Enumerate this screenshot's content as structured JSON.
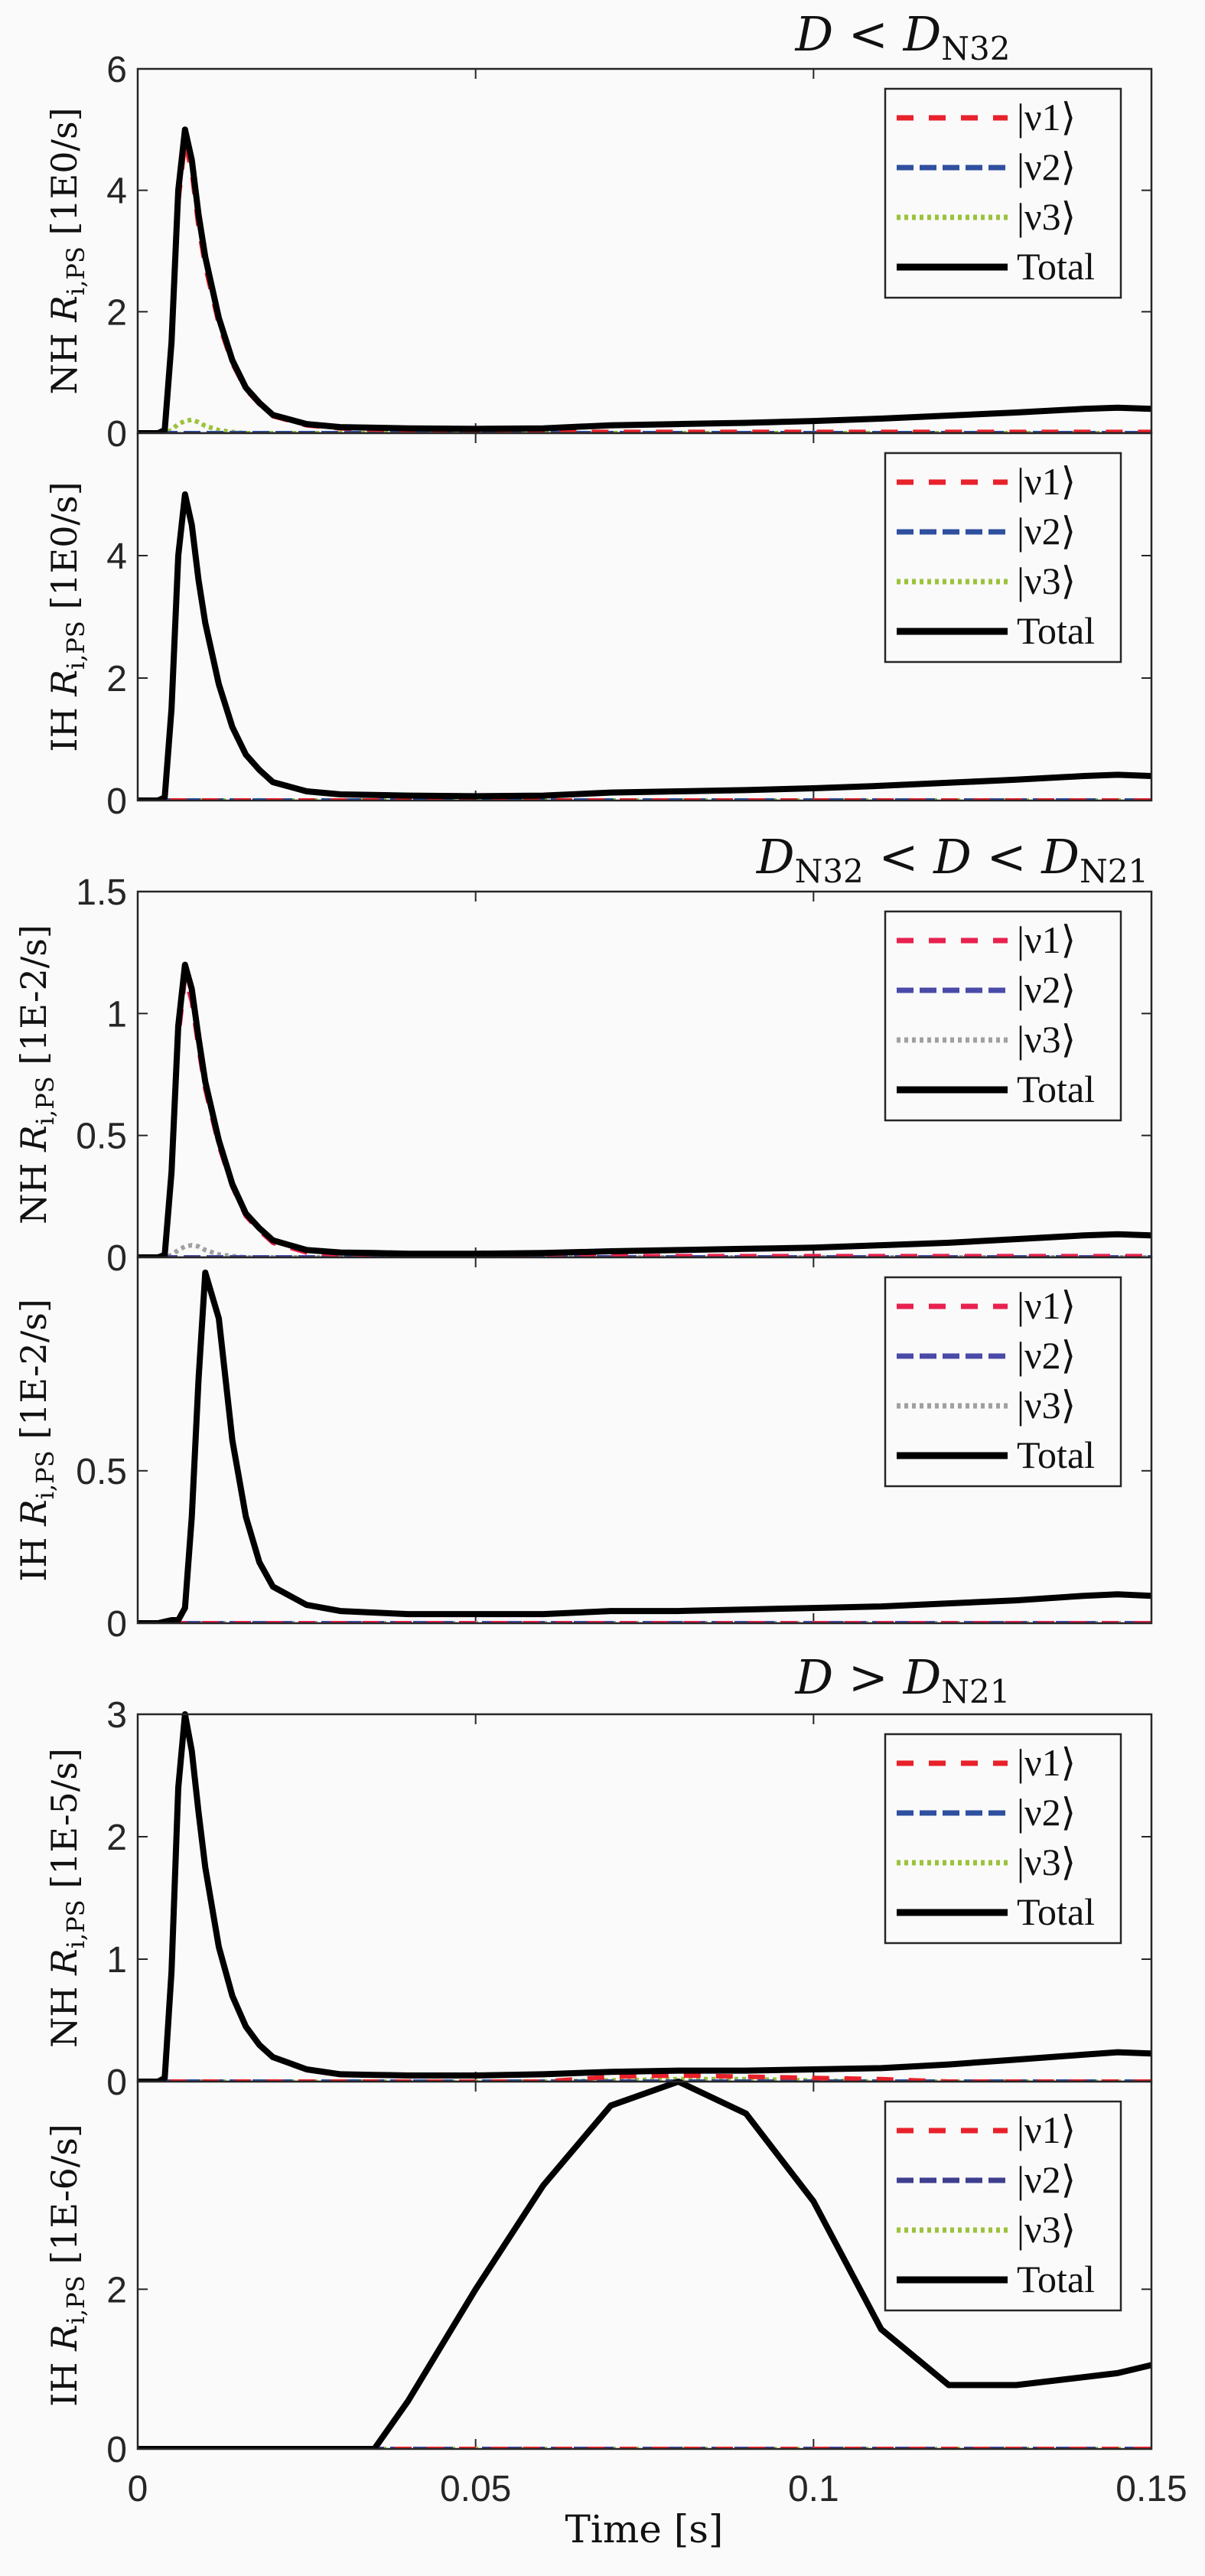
{
  "chart_data": {
    "type": "line",
    "xlabel": "Time [s]",
    "xlim": [
      0,
      0.15
    ],
    "xticks": [
      "0",
      "0.05",
      "0.1",
      "0.15"
    ],
    "xtick_values": [
      0,
      0.05,
      0.1,
      0.15
    ],
    "legend_labels": [
      "|ν1⟩",
      "|ν2⟩",
      "|ν3⟩",
      "Total"
    ],
    "legend_placement": "top-right",
    "x": [
      0,
      0.003,
      0.004,
      0.005,
      0.006,
      0.007,
      0.008,
      0.009,
      0.01,
      0.012,
      0.014,
      0.016,
      0.018,
      0.02,
      0.025,
      0.03,
      0.035,
      0.04,
      0.05,
      0.06,
      0.07,
      0.08,
      0.09,
      0.1,
      0.11,
      0.12,
      0.13,
      0.14,
      0.145,
      0.15
    ],
    "groups": [
      {
        "title": {
          "a": "D",
          "op1": " < ",
          "b": "D",
          "b_sub": "N32"
        }
      },
      {
        "title": {
          "pre": "D",
          "pre_sub": "N32",
          "op1": " < ",
          "a": "D",
          "op2": " < ",
          "b": "D",
          "b_sub": "N21"
        }
      },
      {
        "title": {
          "a": "D",
          "op1": " > ",
          "b": "D",
          "b_sub": "N21"
        }
      }
    ],
    "panels": [
      {
        "group": 0,
        "hierarchy": "NH",
        "symbol": "R",
        "sub": "i,PS",
        "unit": "[1E0/s]",
        "ylim": [
          0,
          6
        ],
        "yticks": [
          0,
          2,
          4,
          6
        ],
        "colors": {
          "nu1": "#e8212b",
          "nu2": "#2f4f9f",
          "nu3": "#9cc23c"
        },
        "series": {
          "total": [
            0,
            0,
            0.05,
            1.5,
            4.0,
            5.0,
            4.5,
            3.6,
            2.9,
            1.9,
            1.2,
            0.75,
            0.5,
            0.3,
            0.15,
            0.1,
            0.09,
            0.08,
            0.07,
            0.08,
            0.13,
            0.15,
            0.17,
            0.2,
            0.24,
            0.29,
            0.34,
            0.4,
            0.42,
            0.4
          ],
          "nu1": [
            0,
            0,
            0.04,
            1.4,
            3.8,
            4.8,
            4.3,
            3.4,
            2.75,
            1.8,
            1.15,
            0.72,
            0.48,
            0.28,
            0.13,
            0.08,
            0.06,
            0.05,
            0.03,
            0.02,
            0.02,
            0.02,
            0.02,
            0.02,
            0.02,
            0.02,
            0.02,
            0.02,
            0.02,
            0.02
          ],
          "nu2": 0,
          "nu3": [
            0,
            0,
            0,
            0.05,
            0.15,
            0.2,
            0.22,
            0.18,
            0.12,
            0.05,
            0.02,
            0,
            0,
            0,
            0,
            0,
            0,
            0,
            0,
            0,
            0,
            0,
            0,
            0,
            0,
            0,
            0,
            0,
            0,
            0
          ]
        }
      },
      {
        "group": 0,
        "hierarchy": "IH",
        "symbol": "R",
        "sub": "i,PS",
        "unit": "[1E0/s]",
        "ylim": [
          0,
          6
        ],
        "yticks": [
          0,
          2,
          4
        ],
        "colors": {
          "nu1": "#e8212b",
          "nu2": "#2f4f9f",
          "nu3": "#9cc23c"
        },
        "series": {
          "total": [
            0,
            0,
            0.05,
            1.5,
            4.0,
            5.0,
            4.5,
            3.6,
            2.9,
            1.9,
            1.2,
            0.75,
            0.5,
            0.3,
            0.15,
            0.1,
            0.09,
            0.08,
            0.07,
            0.08,
            0.13,
            0.15,
            0.17,
            0.2,
            0.24,
            0.29,
            0.34,
            0.4,
            0.42,
            0.4
          ],
          "nu1": 0,
          "nu2": 0,
          "nu3": 0
        }
      },
      {
        "group": 1,
        "hierarchy": "NH",
        "symbol": "R",
        "sub": "i,PS",
        "unit": "[1E-2/s]",
        "ylim": [
          0,
          1.5
        ],
        "yticks": [
          0,
          0.5,
          1,
          1.5
        ],
        "colors": {
          "nu1": "#e8214f",
          "nu2": "#4a4aa8",
          "nu3": "#a0a0a0"
        },
        "series": {
          "total": [
            0,
            0,
            0.01,
            0.35,
            0.95,
            1.2,
            1.1,
            0.9,
            0.72,
            0.48,
            0.3,
            0.18,
            0.12,
            0.07,
            0.03,
            0.02,
            0.018,
            0.015,
            0.015,
            0.018,
            0.025,
            0.03,
            0.035,
            0.04,
            0.05,
            0.06,
            0.075,
            0.09,
            0.095,
            0.09
          ],
          "nu1": [
            0,
            0,
            0.01,
            0.33,
            0.9,
            1.15,
            1.05,
            0.86,
            0.69,
            0.46,
            0.29,
            0.17,
            0.11,
            0.06,
            0.02,
            0.01,
            0.01,
            0.005,
            0.005,
            0.005,
            0.005,
            0.005,
            0.005,
            0.005,
            0.005,
            0.005,
            0.005,
            0.005,
            0.005,
            0.005
          ],
          "nu2": 0,
          "nu3": [
            0,
            0,
            0,
            0.01,
            0.03,
            0.045,
            0.05,
            0.045,
            0.03,
            0.012,
            0.005,
            0,
            0,
            0,
            0,
            0,
            0,
            0,
            0,
            0,
            0,
            0,
            0,
            0,
            0,
            0,
            0,
            0,
            0,
            0
          ]
        }
      },
      {
        "group": 1,
        "hierarchy": "IH",
        "symbol": "R",
        "sub": "i,PS",
        "unit": "[1E-2/s]",
        "ylim": [
          0,
          1.2
        ],
        "yticks": [
          0,
          0.5
        ],
        "colors": {
          "nu1": "#e8214f",
          "nu2": "#4a4aa8",
          "nu3": "#a0a0a0"
        },
        "series": {
          "total": [
            0,
            0,
            0.005,
            0.01,
            0.01,
            0.05,
            0.35,
            0.8,
            1.15,
            1.0,
            0.6,
            0.35,
            0.2,
            0.12,
            0.06,
            0.04,
            0.035,
            0.03,
            0.03,
            0.03,
            0.04,
            0.04,
            0.045,
            0.05,
            0.055,
            0.065,
            0.075,
            0.09,
            0.095,
            0.09
          ],
          "nu1": 0,
          "nu2": 0,
          "nu3": 0
        }
      },
      {
        "group": 2,
        "hierarchy": "NH",
        "symbol": "R",
        "sub": "i,PS",
        "unit": "[1E-5/s]",
        "ylim": [
          0,
          3
        ],
        "yticks": [
          0,
          1,
          2,
          3
        ],
        "colors": {
          "nu1": "#e8212b",
          "nu2": "#2f4f9f",
          "nu3": "#9cc23c"
        },
        "series": {
          "total": [
            0,
            0,
            0.03,
            0.9,
            2.4,
            3.0,
            2.7,
            2.2,
            1.75,
            1.1,
            0.7,
            0.45,
            0.3,
            0.2,
            0.1,
            0.06,
            0.055,
            0.05,
            0.05,
            0.06,
            0.08,
            0.09,
            0.09,
            0.1,
            0.11,
            0.14,
            0.18,
            0.22,
            0.24,
            0.23
          ],
          "nu1": [
            0,
            0,
            0,
            0,
            0,
            0,
            0,
            0,
            0,
            0,
            0,
            0,
            0,
            0,
            0,
            0,
            0,
            0,
            0,
            0,
            0.04,
            0.05,
            0.04,
            0.03,
            0.02,
            0,
            0,
            0,
            0,
            0
          ],
          "nu2": 0,
          "nu3": [
            0,
            0,
            0,
            0,
            0,
            0,
            0,
            0,
            0,
            0,
            0,
            0,
            0,
            0,
            0,
            0,
            0,
            0,
            0,
            0,
            0.01,
            0.02,
            0.02,
            0.01,
            0,
            0,
            0,
            0,
            0,
            0
          ]
        }
      },
      {
        "group": 2,
        "hierarchy": "IH",
        "symbol": "R",
        "sub": "i,PS",
        "unit": "[1E-6/s]",
        "ylim": [
          0,
          4.6
        ],
        "yticks": [
          0,
          2
        ],
        "colors": {
          "nu1": "#e8212b",
          "nu2": "#3f3f8f",
          "nu3": "#9cc23c"
        },
        "series": {
          "total": [
            0,
            0,
            0,
            0,
            0,
            0,
            0,
            0,
            0,
            0,
            0,
            0,
            0,
            0,
            0,
            0,
            0,
            0.6,
            2.0,
            3.3,
            4.3,
            4.6,
            4.2,
            3.1,
            1.5,
            0.8,
            0.8,
            0.9,
            0.95,
            1.05
          ],
          "nu1": 0,
          "nu2": 0,
          "nu3": 0
        }
      }
    ]
  }
}
